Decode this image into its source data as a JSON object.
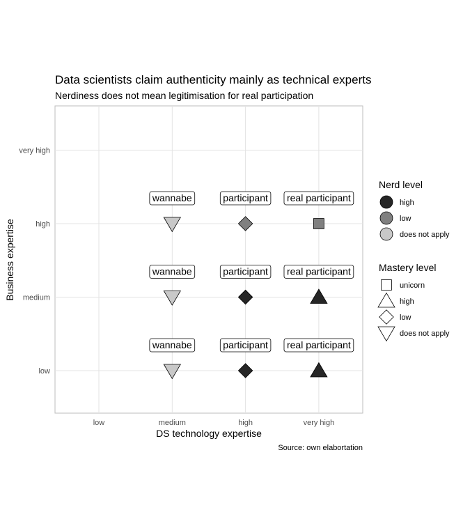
{
  "chart_data": {
    "type": "scatter",
    "title": "Data scientists claim authenticity mainly as technical experts",
    "subtitle": "Nerdiness does not mean legitimisation for real participation",
    "xlabel": "DS technology expertise",
    "ylabel": "Business expertise",
    "caption": "Source: own elabortation",
    "x_categories": [
      "low",
      "medium",
      "high",
      "very high"
    ],
    "y_categories": [
      "low",
      "medium",
      "high",
      "very high"
    ],
    "grid": true,
    "legend_position": "right",
    "points": [
      {
        "x": "medium",
        "y": "low",
        "nerd": "does not apply",
        "mastery": "does not apply",
        "label": "wannabe"
      },
      {
        "x": "high",
        "y": "low",
        "nerd": "high",
        "mastery": "low",
        "label": "participant"
      },
      {
        "x": "very high",
        "y": "low",
        "nerd": "high",
        "mastery": "high",
        "label": "real participant"
      },
      {
        "x": "medium",
        "y": "medium",
        "nerd": "does not apply",
        "mastery": "does not apply",
        "label": "wannabe"
      },
      {
        "x": "high",
        "y": "medium",
        "nerd": "high",
        "mastery": "low",
        "label": "participant"
      },
      {
        "x": "very high",
        "y": "medium",
        "nerd": "high",
        "mastery": "high",
        "label": "real participant"
      },
      {
        "x": "medium",
        "y": "high",
        "nerd": "does not apply",
        "mastery": "does not apply",
        "label": "wannabe"
      },
      {
        "x": "high",
        "y": "high",
        "nerd": "low",
        "mastery": "low",
        "label": "participant"
      },
      {
        "x": "very high",
        "y": "high",
        "nerd": "low",
        "mastery": "unicorn",
        "label": "real participant"
      }
    ],
    "legends": [
      {
        "title": "Nerd level",
        "kind": "fill",
        "items": [
          {
            "label": "high",
            "color": "#262626"
          },
          {
            "label": "low",
            "color": "#808080"
          },
          {
            "label": "does not apply",
            "color": "#c8c8c8"
          }
        ]
      },
      {
        "title": "Mastery level",
        "kind": "shape",
        "items": [
          {
            "label": "unicorn",
            "shape": "square"
          },
          {
            "label": "high",
            "shape": "triangle-up"
          },
          {
            "label": "low",
            "shape": "diamond"
          },
          {
            "label": "does not apply",
            "shape": "triangle-down"
          }
        ]
      }
    ],
    "colors": {
      "high": "#262626",
      "low": "#808080",
      "does not apply": "#c8c8c8",
      "grid": "#e3e3e3",
      "panel_border": "#bdbdbd"
    }
  }
}
